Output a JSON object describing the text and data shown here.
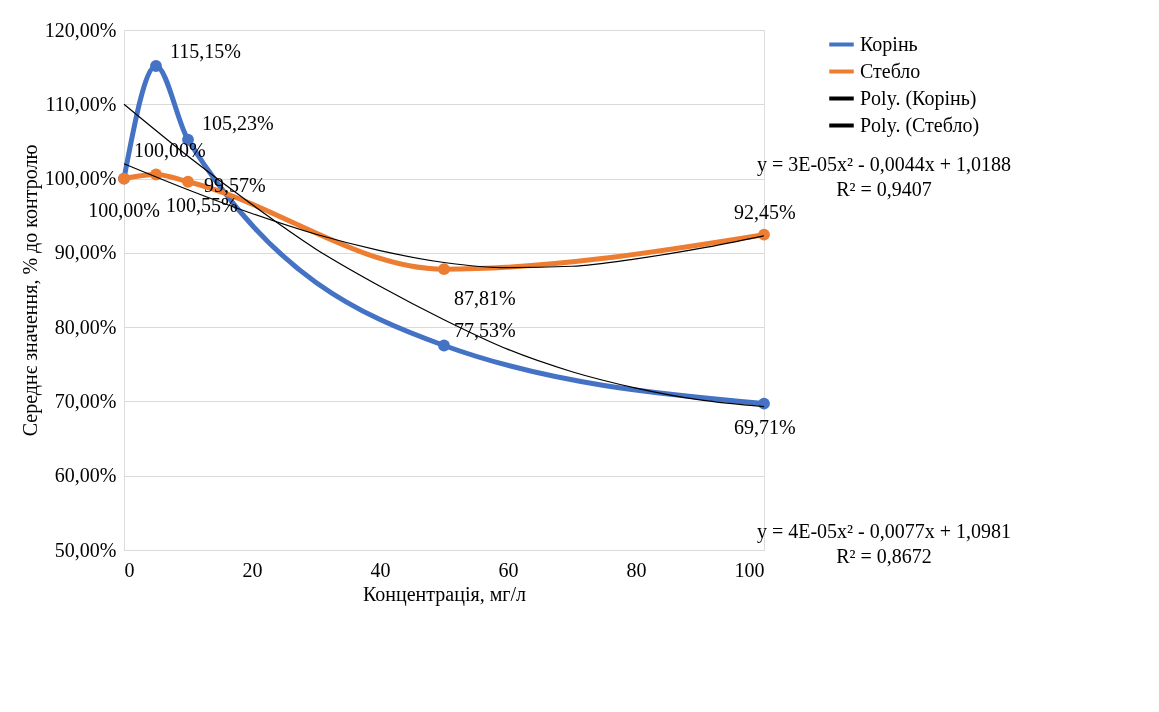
{
  "chart_data": {
    "type": "line",
    "xlabel": "Концентрація, мг/л",
    "ylabel": "Середнє значення,  % до контролю",
    "xlim": [
      0,
      100
    ],
    "xticks": [
      0,
      20,
      40,
      60,
      80,
      100
    ],
    "ylim": [
      50,
      120
    ],
    "yticks": [
      {
        "value": 50,
        "label": "50,00%"
      },
      {
        "value": 60,
        "label": "60,00%"
      },
      {
        "value": 70,
        "label": "70,00%"
      },
      {
        "value": 80,
        "label": "80,00%"
      },
      {
        "value": 90,
        "label": "90,00%"
      },
      {
        "value": 100,
        "label": "100,00%"
      },
      {
        "value": 110,
        "label": "110,00%"
      },
      {
        "value": 120,
        "label": "120,00%"
      }
    ],
    "grid": "y",
    "legend": "right",
    "marker": "circle",
    "line_style": "solid",
    "series": [
      {
        "name": "Корінь",
        "color": "#4472c4",
        "x": [
          0,
          5,
          10,
          50,
          100
        ],
        "values": [
          100,
          115.15,
          105.23,
          77.53,
          69.71
        ],
        "value_labels": [
          "100,00%",
          "115,15%",
          "105,23%",
          "77,53%",
          "69,71%"
        ]
      },
      {
        "name": "Стебло",
        "color": "#ed7d31",
        "x": [
          0,
          5,
          10,
          50,
          100
        ],
        "values": [
          100,
          100.55,
          99.57,
          87.81,
          92.45
        ],
        "value_labels": [
          "100,00%",
          "100,55%",
          "99,57%",
          "87,81%",
          "92,45%"
        ]
      },
      {
        "name": "Poly. (Корінь)",
        "color": "#000000",
        "type": "line",
        "marker": "none",
        "x": [
          0,
          10,
          20,
          30,
          40,
          50,
          60,
          70,
          80,
          90,
          100
        ],
        "values": [
          110,
          103,
          96.5,
          90.5,
          85.5,
          81,
          77,
          74,
          71.8,
          70.2,
          69.3
        ]
      },
      {
        "name": "Poly. (Стебло)",
        "color": "#000000",
        "type": "line",
        "marker": "none",
        "x": [
          0,
          10,
          20,
          30,
          40,
          50,
          60,
          70,
          80,
          90,
          100
        ],
        "values": [
          102,
          98.5,
          95.3,
          92.5,
          90.3,
          88.7,
          88,
          88.2,
          89.2,
          90.6,
          92.3
        ]
      }
    ],
    "annotations": [
      "y = 3E-05x² - 0,0044x + 1,0188",
      "R² = 0,9407",
      "y = 4E-05x² - 0,0077x + 1,0981",
      "R² = 0,8672"
    ]
  }
}
